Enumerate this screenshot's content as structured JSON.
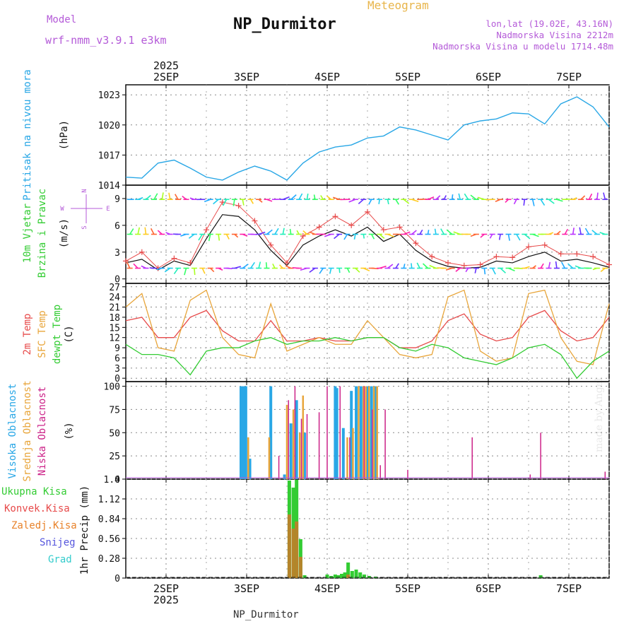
{
  "header": {
    "title": "NP_Durmitor",
    "subtitle": "Meteogram",
    "model_label": "Model",
    "model_value": "wrf-nmm_v3.9.1 e3km",
    "location_line1": "lon,lat (19.02E, 43.16N)",
    "location_line2": "Nadmorska Visina 2212m",
    "location_line3": "Nadmorska Visina u modelu 1714.48m",
    "footer": "NP_Durmitor",
    "credit": "made by Angel"
  },
  "colors": {
    "pressure": "#29a7e6",
    "temp2m": "#e74a4a",
    "sfc": "#e8a53a",
    "dewpt": "#33cc33",
    "wind_mean": "#111111",
    "wind_gust": "#e74a4a",
    "high_cloud": "#29a7e6",
    "mid_cloud": "#e8a53a",
    "low_cloud": "#cc2288",
    "precip_total": "#33cc33",
    "precip_conv": "#e74a4a",
    "precip_frozen": "#e8822a",
    "snow": "#5555dd",
    "graupel": "#33cccc"
  },
  "chart_data": [
    {
      "id": "pressure",
      "type": "line",
      "ylabel_left": "Pritisak na nivou mora",
      "unit": "(hPa)",
      "top_axis_year": "2025",
      "days": [
        "2SEP",
        "3SEP",
        "4SEP",
        "5SEP",
        "6SEP",
        "7SEP"
      ],
      "yticks": [
        1014,
        1017,
        1020,
        1023
      ],
      "ylim": [
        1014,
        1024
      ],
      "xlim": [
        -0.5,
        5.5
      ],
      "x": [
        -0.5,
        -0.3,
        -0.1,
        0.1,
        0.3,
        0.5,
        0.7,
        0.9,
        1.1,
        1.3,
        1.5,
        1.7,
        1.9,
        2.1,
        2.3,
        2.5,
        2.7,
        2.9,
        3.1,
        3.3,
        3.5,
        3.7,
        3.9,
        4.1,
        4.3,
        4.5,
        4.7,
        4.9,
        5.1,
        5.3,
        5.5
      ],
      "values": [
        1014.8,
        1014.7,
        1016.2,
        1016.5,
        1015.7,
        1014.8,
        1014.5,
        1015.3,
        1015.9,
        1015.4,
        1014.5,
        1016.2,
        1017.3,
        1017.8,
        1018.0,
        1018.7,
        1018.9,
        1019.8,
        1019.5,
        1019.0,
        1018.5,
        1020.0,
        1020.4,
        1020.6,
        1021.2,
        1021.1,
        1020.1,
        1022.1,
        1022.8,
        1021.8,
        1019.8
      ]
    },
    {
      "id": "wind",
      "type": "line",
      "ylabel_left": [
        "10m Vjetar",
        "Brzina i Pravac"
      ],
      "unit": "(m/s)",
      "yticks": [
        0,
        3,
        6,
        9
      ],
      "ylim": [
        -0.5,
        10.5
      ],
      "compass": [
        "N",
        "W",
        "E",
        "S"
      ],
      "x": [
        -0.5,
        -0.3,
        -0.1,
        0.1,
        0.3,
        0.5,
        0.7,
        0.9,
        1.1,
        1.3,
        1.5,
        1.7,
        1.9,
        2.1,
        2.3,
        2.5,
        2.7,
        2.9,
        3.1,
        3.3,
        3.5,
        3.7,
        3.9,
        4.1,
        4.3,
        4.5,
        4.7,
        4.9,
        5.1,
        5.3,
        5.5
      ],
      "series": [
        {
          "name": "mean speed",
          "values": [
            1.8,
            2.2,
            1.0,
            2.0,
            1.5,
            4.5,
            7.2,
            7.0,
            5.5,
            3.2,
            1.5,
            3.8,
            4.8,
            5.5,
            4.8,
            5.8,
            4.2,
            5.0,
            3.2,
            2.0,
            1.4,
            1.2,
            1.3,
            2.0,
            1.8,
            2.5,
            3.0,
            2.0,
            2.2,
            1.8,
            1.3
          ]
        },
        {
          "name": "gust",
          "values": [
            2.0,
            3.0,
            1.2,
            2.3,
            1.8,
            5.5,
            8.6,
            8.2,
            6.5,
            3.8,
            1.8,
            4.8,
            5.8,
            7.0,
            6.0,
            7.5,
            5.5,
            5.8,
            4.0,
            2.5,
            1.8,
            1.5,
            1.6,
            2.5,
            2.4,
            3.6,
            3.8,
            2.8,
            2.8,
            2.5,
            1.6
          ]
        }
      ],
      "barb_rows": [
        {
          "level": 8.9,
          "color_from": "#22aaff",
          "color_to": "#22ff66"
        },
        {
          "level": 5.0,
          "color_from": "#22ccff",
          "color_to": "#66ff33"
        },
        {
          "level": 1.2,
          "color_from": "#22ffcc",
          "color_to": "#ff33aa"
        }
      ]
    },
    {
      "id": "temperature",
      "type": "line",
      "ylabel_left": [
        "2m Temp",
        "SFC Temp",
        "dewpt Temp"
      ],
      "unit": "(C)",
      "yticks": [
        0,
        3,
        6,
        9,
        12,
        15,
        18,
        21,
        24,
        27
      ],
      "ylim": [
        -1,
        28
      ],
      "x": [
        -0.5,
        -0.3,
        -0.1,
        0.1,
        0.3,
        0.5,
        0.7,
        0.9,
        1.1,
        1.3,
        1.5,
        1.7,
        1.9,
        2.1,
        2.3,
        2.5,
        2.7,
        2.9,
        3.1,
        3.3,
        3.5,
        3.7,
        3.9,
        4.1,
        4.3,
        4.5,
        4.7,
        4.9,
        5.1,
        5.3,
        5.5
      ],
      "series": [
        {
          "name": "2m Temp",
          "values": [
            17,
            18,
            12,
            12,
            18,
            20,
            14,
            11,
            11,
            17,
            11,
            11,
            12,
            11,
            11,
            12,
            12,
            9,
            9,
            11,
            17,
            19,
            13,
            11,
            12,
            18,
            20,
            14,
            11,
            12,
            18
          ]
        },
        {
          "name": "SFC Temp",
          "values": [
            21,
            25,
            9,
            8,
            23,
            26,
            12,
            7,
            6,
            22,
            8,
            10,
            12,
            10,
            10,
            17,
            12,
            7,
            6,
            7,
            24,
            26,
            8,
            5,
            6,
            25,
            26,
            12,
            5,
            4,
            22
          ]
        },
        {
          "name": "dewpt Temp",
          "values": [
            10,
            7,
            7,
            6,
            1,
            8,
            9,
            9,
            11,
            12,
            10,
            11,
            11,
            12,
            11,
            12,
            12,
            9,
            8,
            10,
            9,
            6,
            5,
            4,
            6,
            9,
            10,
            7,
            0,
            5,
            8
          ]
        }
      ]
    },
    {
      "id": "clouds",
      "type": "bar",
      "ylabel_left": [
        "Visoka Oblacnost",
        "Srednja Oblacnost",
        "Niska Oblacnost"
      ],
      "unit": "(%)",
      "yticks": [
        0,
        25,
        50,
        75,
        100
      ],
      "ylim": [
        0,
        105
      ],
      "series": [
        {
          "name": "Visoka Oblacnost",
          "x": [
            0.93,
            0.96,
            0.99,
            1.04,
            1.3,
            1.47,
            1.55,
            1.62,
            1.72,
            2.1,
            2.12,
            2.2,
            2.3,
            2.36,
            2.42,
            2.5,
            2.55,
            2.6
          ],
          "values": [
            100,
            100,
            100,
            22,
            100,
            5,
            60,
            85,
            50,
            100,
            98,
            55,
            95,
            100,
            100,
            100,
            100,
            100
          ]
        },
        {
          "name": "Srednja Oblacnost",
          "x": [
            1.02,
            1.28,
            1.5,
            1.58,
            1.66,
            1.7,
            2.25,
            2.32,
            2.39,
            2.45,
            2.48,
            2.52,
            2.58,
            2.62
          ],
          "values": [
            45,
            45,
            80,
            75,
            50,
            90,
            45,
            55,
            100,
            100,
            100,
            100,
            100,
            100
          ]
        },
        {
          "name": "Niska Oblacnost",
          "x": [
            1.4,
            1.52,
            1.6,
            1.68,
            1.75,
            1.9,
            2.0,
            2.16,
            2.28,
            2.46,
            2.56,
            2.66,
            2.72,
            3.0,
            3.8,
            4.52,
            4.65,
            5.45
          ],
          "values": [
            25,
            85,
            100,
            65,
            70,
            72,
            100,
            100,
            45,
            100,
            75,
            15,
            75,
            10,
            45,
            5,
            50,
            8
          ]
        }
      ]
    },
    {
      "id": "precipitation",
      "type": "bar",
      "ylabel_left": [
        "Ukupna Kisa",
        "Konvek.Kisa",
        "Zaledj.Kisa",
        "Snijeg",
        "Grad"
      ],
      "unit": "1hr Precip (mm)",
      "yticks": [
        0,
        0.28,
        0.56,
        0.84,
        1.12,
        1.4
      ],
      "ylim": [
        0,
        1.4
      ],
      "bottom_axis_year": "2025",
      "days": [
        "2SEP",
        "3SEP",
        "4SEP",
        "5SEP",
        "6SEP",
        "7SEP"
      ],
      "x": [
        1.53,
        1.58,
        1.62,
        1.67,
        1.72,
        2.0,
        2.05,
        2.1,
        2.14,
        2.18,
        2.22,
        2.26,
        2.31,
        2.36,
        2.41,
        2.46,
        2.52,
        2.6,
        4.65
      ],
      "values": [
        1.38,
        1.28,
        1.39,
        0.55,
        0.04,
        0.05,
        0.03,
        0.05,
        0.04,
        0.06,
        0.08,
        0.22,
        0.1,
        0.12,
        0.08,
        0.05,
        0.03,
        0.02,
        0.04
      ],
      "convective": [
        0.9,
        0.7,
        0.8,
        0.3,
        0,
        0,
        0,
        0,
        0,
        0,
        0,
        0.05,
        0,
        0,
        0,
        0,
        0,
        0,
        0
      ]
    }
  ]
}
